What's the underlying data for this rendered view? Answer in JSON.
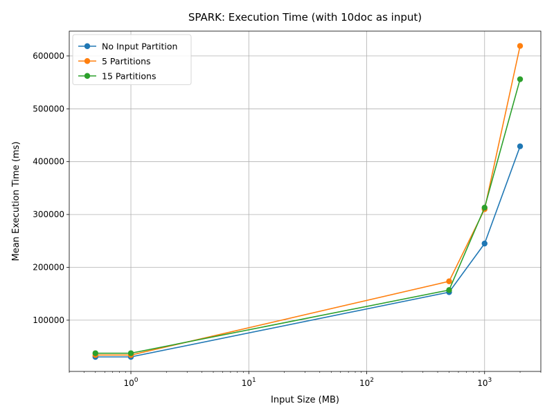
{
  "chart_data": {
    "type": "line",
    "title": "SPARK: Execution Time (with 10doc as input)",
    "xlabel": "Input Size (MB)",
    "ylabel": "Mean Execution Time (ms)",
    "x_scale": "log",
    "xlim": [
      0.3,
      3000
    ],
    "ylim": [
      3000,
      647000
    ],
    "grid": true,
    "legend_position": "top-left",
    "x_ticks": [
      {
        "value": 1,
        "base": "10",
        "exp": "0"
      },
      {
        "value": 10,
        "base": "10",
        "exp": "1"
      },
      {
        "value": 100,
        "base": "10",
        "exp": "2"
      },
      {
        "value": 1000,
        "base": "10",
        "exp": "3"
      }
    ],
    "y_ticks": [
      {
        "value": 100000,
        "label": "100000"
      },
      {
        "value": 200000,
        "label": "200000"
      },
      {
        "value": 300000,
        "label": "300000"
      },
      {
        "value": 400000,
        "label": "400000"
      },
      {
        "value": 500000,
        "label": "500000"
      },
      {
        "value": 600000,
        "label": "600000"
      }
    ],
    "x": [
      0.5,
      1,
      500,
      1000,
      2000
    ],
    "series": [
      {
        "name": "No Input Partition",
        "color": "#1f77b4",
        "values": [
          30500,
          30500,
          153000,
          245000,
          429000
        ]
      },
      {
        "name": "5 Partitions",
        "color": "#ff7f0e",
        "values": [
          34000,
          34000,
          173500,
          310000,
          619000
        ]
      },
      {
        "name": "15 Partitions",
        "color": "#2ca02c",
        "values": [
          37500,
          37500,
          157000,
          313000,
          556000
        ]
      }
    ]
  }
}
